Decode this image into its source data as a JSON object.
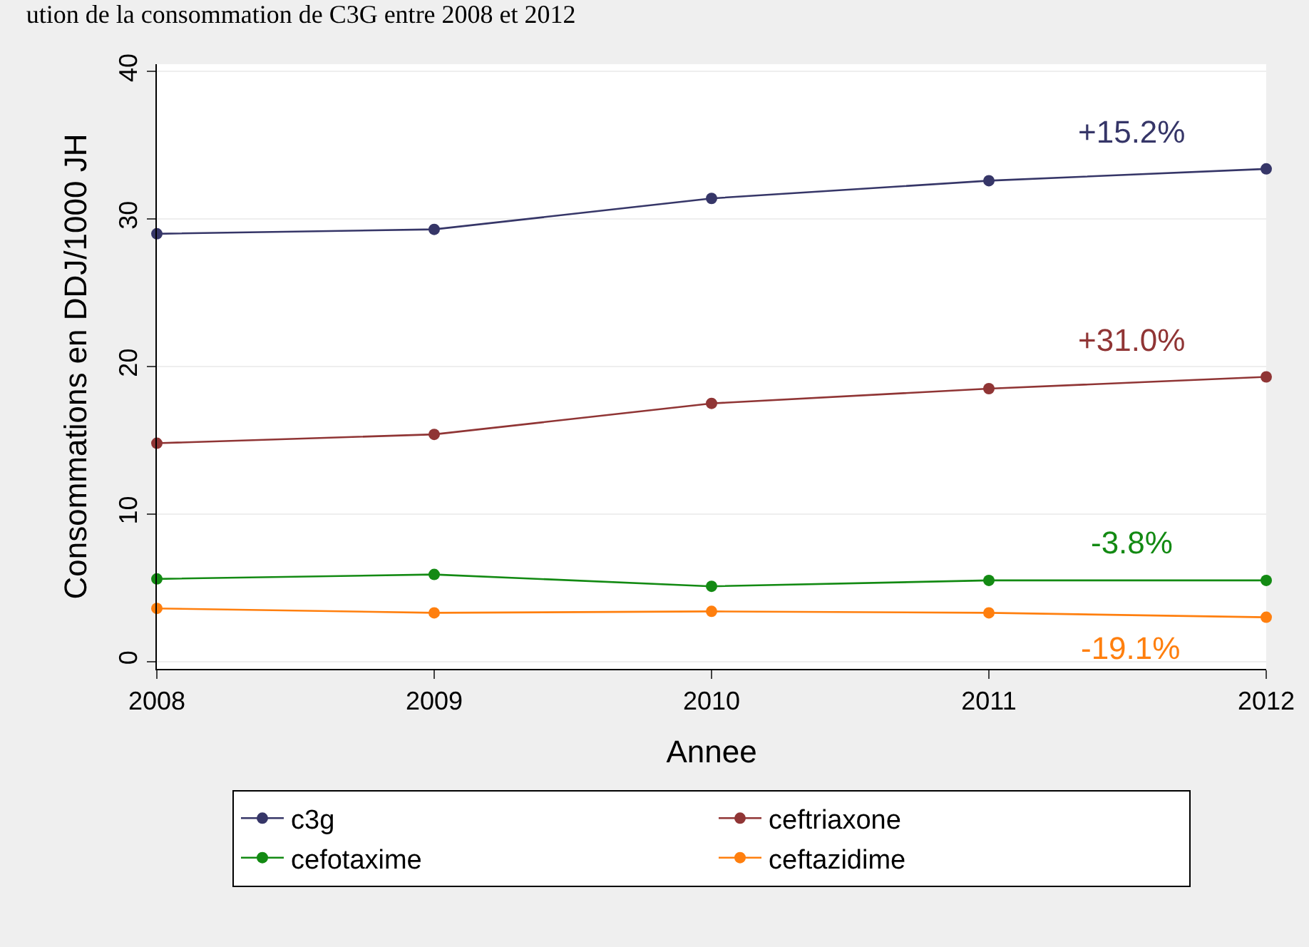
{
  "chart_data": {
    "type": "line",
    "title": "ution de la consommation de C3G entre 2008 et 2012",
    "xlabel": "Annee",
    "ylabel": "Consommations en DDJ/1000 JH",
    "x": [
      2008,
      2009,
      2010,
      2011,
      2012
    ],
    "series": [
      {
        "name": "c3g",
        "color": "#363668",
        "values": [
          29.0,
          29.3,
          31.4,
          32.6,
          33.4
        ]
      },
      {
        "name": "ceftriaxone",
        "color": "#903535",
        "values": [
          14.8,
          15.4,
          17.5,
          18.5,
          19.3
        ]
      },
      {
        "name": "cefotaxime",
        "color": "#138a13",
        "values": [
          5.6,
          5.9,
          5.1,
          5.5,
          5.5
        ]
      },
      {
        "name": "ceftazidime",
        "color": "#ff7f0e",
        "values": [
          3.6,
          3.3,
          3.4,
          3.3,
          3.0
        ]
      }
    ],
    "annotations": [
      "+15.2%",
      "+31.0%",
      "-3.8%",
      "-19.1%"
    ],
    "xlim": [
      2008,
      2012
    ],
    "xticks": [
      2008,
      2009,
      2010,
      2011,
      2012
    ],
    "ylim": [
      -0.5,
      40.5
    ],
    "yticks": [
      0,
      10,
      20,
      30,
      40
    ],
    "grid": "y",
    "legend": "bottom",
    "marker": "circle",
    "line_style": "solid"
  }
}
